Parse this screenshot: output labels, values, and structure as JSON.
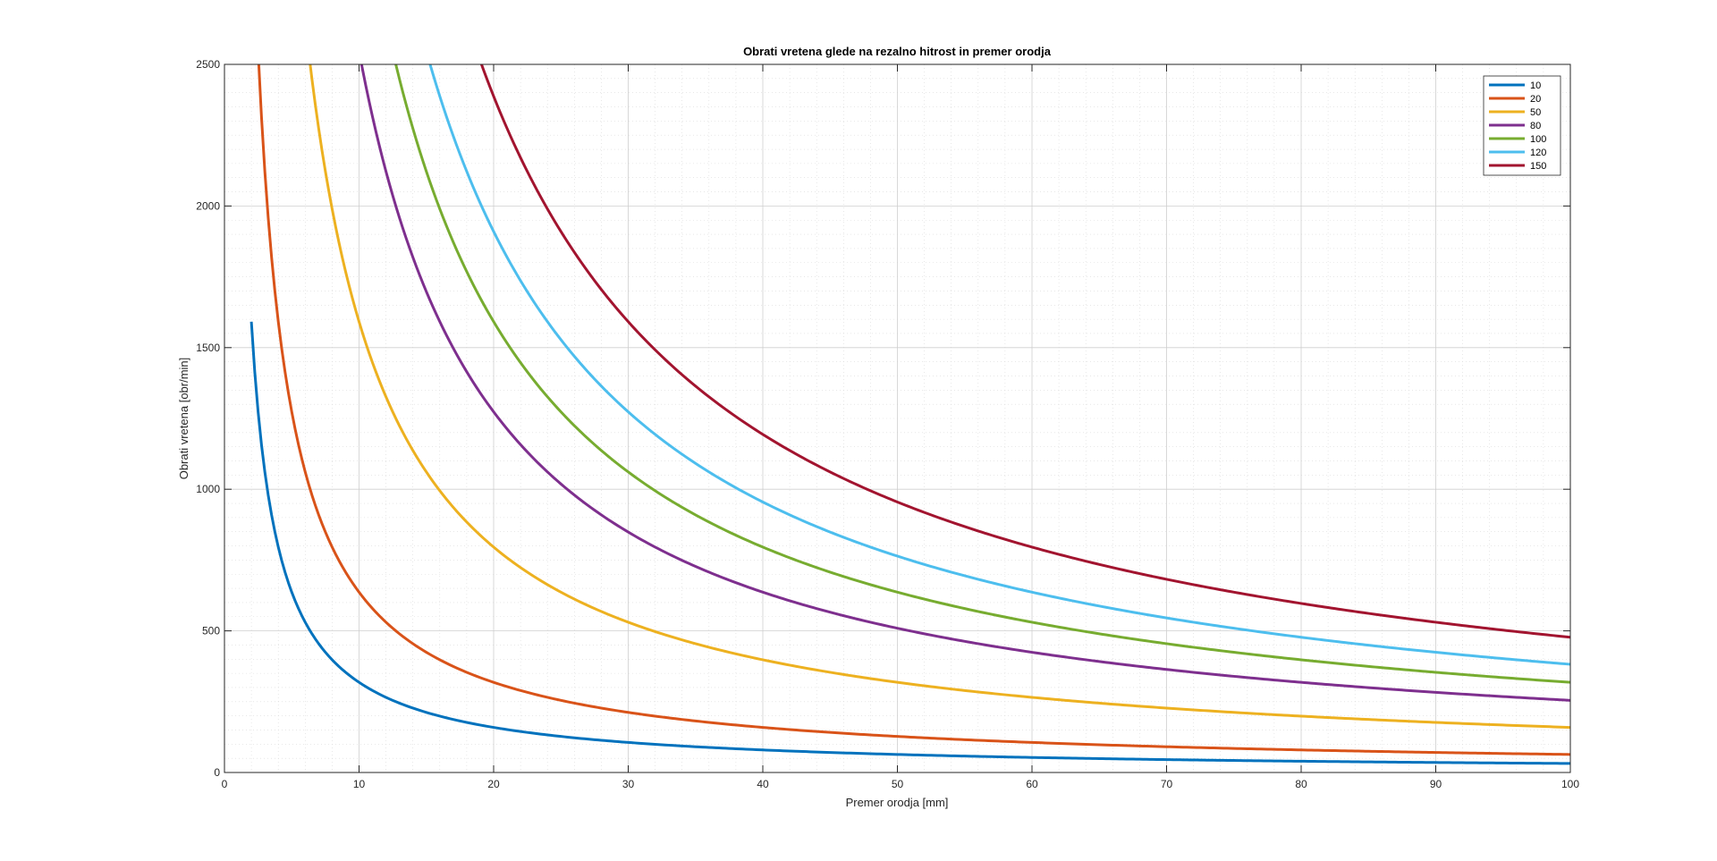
{
  "chart_data": {
    "type": "line",
    "title": "Obrati vretena glede na rezalno hitrost in premer orodja",
    "xlabel": "Premer orodja [mm]",
    "ylabel": "Obrati vretena [obr/min]",
    "xlim": [
      0,
      100
    ],
    "ylim": [
      0,
      2500
    ],
    "x_ticks": [
      0,
      10,
      20,
      30,
      40,
      50,
      60,
      70,
      80,
      90,
      100
    ],
    "y_ticks": [
      0,
      500,
      1000,
      1500,
      2000,
      2500
    ],
    "grid": true,
    "minor_grid": true,
    "legend_position": "top-right",
    "x_start": 2,
    "x_end": 100,
    "series": [
      {
        "name": "10",
        "cutting_speed": 10,
        "color": "#0072BD"
      },
      {
        "name": "20",
        "cutting_speed": 20,
        "color": "#D95319"
      },
      {
        "name": "50",
        "cutting_speed": 50,
        "color": "#EDB120"
      },
      {
        "name": "80",
        "cutting_speed": 80,
        "color": "#7E2F8E"
      },
      {
        "name": "100",
        "cutting_speed": 100,
        "color": "#77AC30"
      },
      {
        "name": "120",
        "cutting_speed": 120,
        "color": "#4DBEEE"
      },
      {
        "name": "150",
        "cutting_speed": 150,
        "color": "#A2142F"
      }
    ]
  }
}
